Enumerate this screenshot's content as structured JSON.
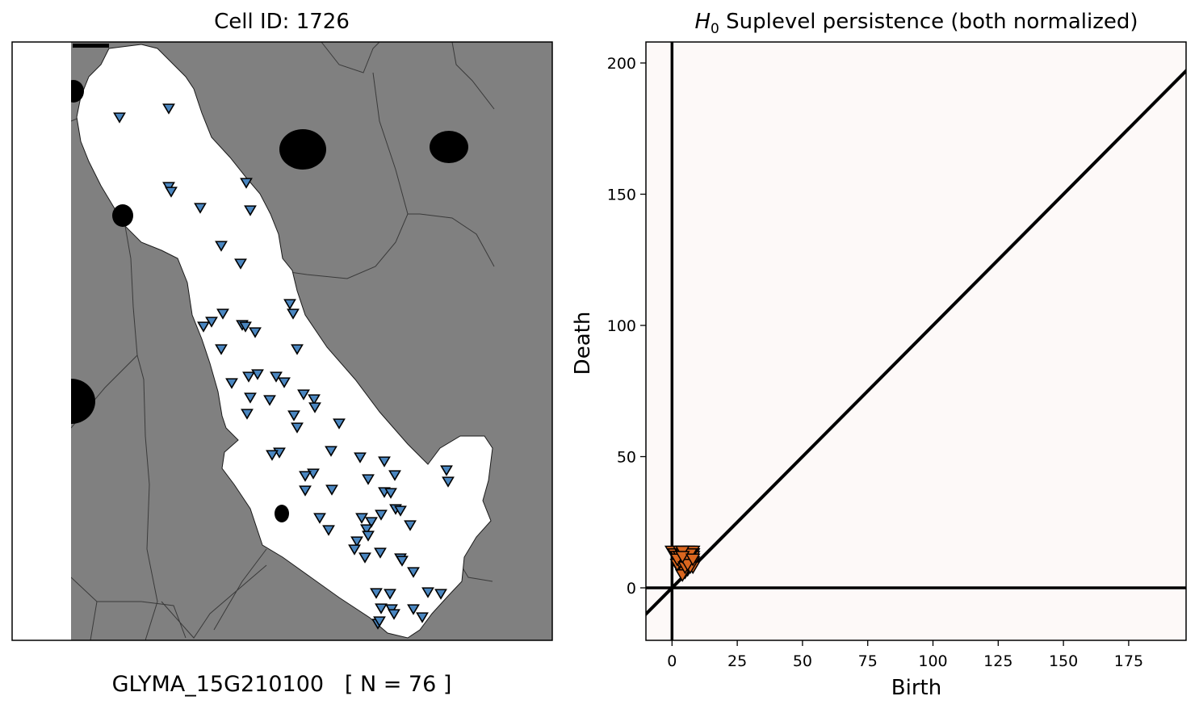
{
  "chart_data": [
    {
      "type": "scatter",
      "panel": "cell-map",
      "title": "Cell ID: 1726",
      "caption": "GLYMA_15G210100   [ N = 76 ]",
      "colors": {
        "background": "#808080",
        "cell": "#ffffff",
        "nucleus": "#000000",
        "marker": "#4a86c0"
      },
      "points": [
        [
          148,
          145
        ],
        [
          209,
          134
        ],
        [
          209,
          231
        ],
        [
          212,
          237
        ],
        [
          305,
          226
        ],
        [
          248,
          257
        ],
        [
          310,
          260
        ],
        [
          274,
          304
        ],
        [
          298,
          326
        ],
        [
          359,
          376
        ],
        [
          363,
          388
        ],
        [
          276,
          388
        ],
        [
          262,
          398
        ],
        [
          252,
          404
        ],
        [
          300,
          402
        ],
        [
          304,
          404
        ],
        [
          316,
          411
        ],
        [
          274,
          432
        ],
        [
          368,
          432
        ],
        [
          319,
          463
        ],
        [
          308,
          466
        ],
        [
          342,
          466
        ],
        [
          352,
          473
        ],
        [
          287,
          474
        ],
        [
          310,
          492
        ],
        [
          334,
          495
        ],
        [
          376,
          488
        ],
        [
          389,
          494
        ],
        [
          390,
          504
        ],
        [
          306,
          512
        ],
        [
          364,
          514
        ],
        [
          420,
          524
        ],
        [
          368,
          529
        ],
        [
          346,
          560
        ],
        [
          337,
          563
        ],
        [
          410,
          558
        ],
        [
          446,
          566
        ],
        [
          476,
          571
        ],
        [
          388,
          586
        ],
        [
          378,
          589
        ],
        [
          489,
          588
        ],
        [
          553,
          582
        ],
        [
          555,
          596
        ],
        [
          456,
          593
        ],
        [
          378,
          607
        ],
        [
          411,
          606
        ],
        [
          476,
          609
        ],
        [
          484,
          610
        ],
        [
          490,
          630
        ],
        [
          496,
          632
        ],
        [
          396,
          641
        ],
        [
          448,
          641
        ],
        [
          460,
          646
        ],
        [
          472,
          637
        ],
        [
          454,
          655
        ],
        [
          456,
          663
        ],
        [
          508,
          650
        ],
        [
          407,
          656
        ],
        [
          442,
          670
        ],
        [
          439,
          680
        ],
        [
          471,
          684
        ],
        [
          452,
          690
        ],
        [
          496,
          691
        ],
        [
          498,
          694
        ],
        [
          512,
          708
        ],
        [
          466,
          734
        ],
        [
          483,
          735
        ],
        [
          530,
          733
        ],
        [
          546,
          735
        ],
        [
          472,
          753
        ],
        [
          485,
          754
        ],
        [
          488,
          760
        ],
        [
          512,
          754
        ],
        [
          523,
          764
        ],
        [
          468,
          772
        ],
        [
          470,
          769
        ]
      ]
    },
    {
      "type": "scatter",
      "panel": "persistence-diagram",
      "title": "H0 Suplevel persistence (both normalized)",
      "title_main": "H",
      "title_sub": "0",
      "title_rest": " Suplevel persistence (both normalized)",
      "xlabel": "Birth",
      "ylabel": "Death",
      "xlim": [
        -10,
        197
      ],
      "ylim": [
        -20,
        208
      ],
      "xticks": [
        0,
        25,
        50,
        75,
        100,
        125,
        150,
        175
      ],
      "yticks": [
        0,
        50,
        100,
        150,
        200
      ],
      "colors": {
        "background": "#fdf9f8",
        "marker": "#d9661f"
      },
      "points": [
        [
          0,
          14
        ],
        [
          1,
          13
        ],
        [
          2,
          12
        ],
        [
          3,
          14
        ],
        [
          4,
          13
        ],
        [
          5,
          12
        ],
        [
          6,
          14
        ],
        [
          7,
          14
        ],
        [
          8,
          13
        ],
        [
          8,
          12
        ],
        [
          7,
          11
        ],
        [
          6,
          10
        ],
        [
          5,
          9
        ],
        [
          4,
          8
        ],
        [
          3,
          7
        ],
        [
          4,
          11
        ],
        [
          5,
          13
        ],
        [
          6,
          12
        ],
        [
          7,
          9
        ],
        [
          8,
          10
        ],
        [
          8,
          8
        ],
        [
          6,
          7
        ],
        [
          5,
          6
        ],
        [
          4,
          5
        ],
        [
          7,
          12
        ],
        [
          2,
          9
        ],
        [
          3,
          10
        ],
        [
          6,
          13
        ],
        [
          5,
          11
        ],
        [
          8,
          14
        ],
        [
          7,
          13
        ],
        [
          3,
          12
        ],
        [
          4,
          14
        ],
        [
          6,
          11
        ],
        [
          2,
          11
        ],
        [
          7,
          8
        ],
        [
          5,
          8
        ],
        [
          6,
          9
        ],
        [
          4,
          12
        ],
        [
          8,
          11
        ]
      ]
    }
  ]
}
